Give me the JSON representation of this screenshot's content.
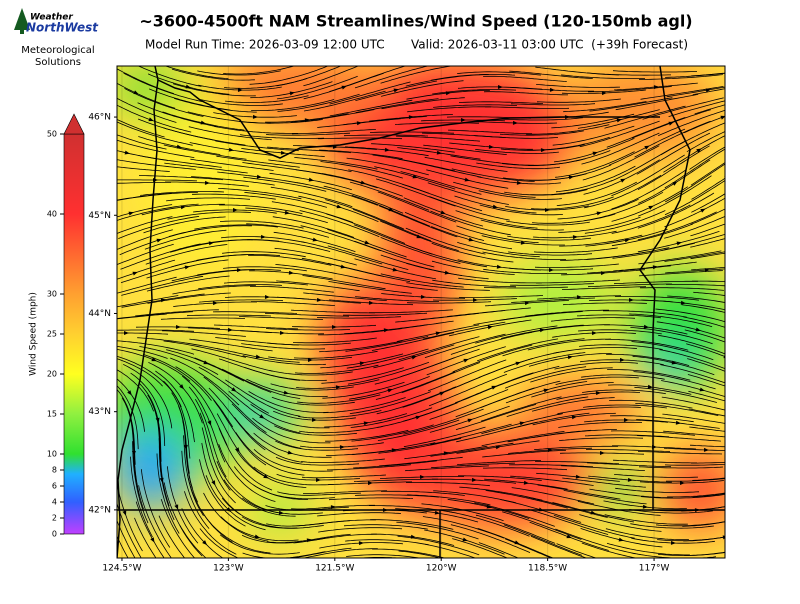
{
  "logo": {
    "line1": "Weather",
    "line2": "NorthWest",
    "tagline": [
      "Meteorological",
      "Solutions"
    ]
  },
  "title": "~3600-4500ft NAM Streamlines/Wind Speed (120-150mb agl)",
  "run_time": "Model Run Time: 2026-03-09 12:00 UTC",
  "valid_time": "Valid: 2026-03-11 03:00 UTC  (+39h Forecast)",
  "colorbar": {
    "label": "Wind Speed (mph)",
    "lim": [
      0,
      50
    ],
    "ticks": [
      0,
      2,
      4,
      6,
      8,
      10,
      15,
      20,
      25,
      30,
      40,
      50
    ]
  },
  "map": {
    "lonlim": [
      -124.57,
      -116.0
    ],
    "latlim": [
      41.51,
      46.52
    ],
    "lon_ticks": [
      {
        "value": -124.5,
        "label": "124.5°W"
      },
      {
        "value": -123,
        "label": "123°W"
      },
      {
        "value": -121.5,
        "label": "121.5°W"
      },
      {
        "value": -120,
        "label": "120°W"
      },
      {
        "value": -118.5,
        "label": "118.5°W"
      },
      {
        "value": -117,
        "label": "117°W"
      }
    ],
    "lat_ticks": [
      {
        "value": 42,
        "label": "42°N"
      },
      {
        "value": 43,
        "label": "43°N"
      },
      {
        "value": 44,
        "label": "44°N"
      },
      {
        "value": 45,
        "label": "45°N"
      },
      {
        "value": 46,
        "label": "46°N"
      }
    ]
  }
}
